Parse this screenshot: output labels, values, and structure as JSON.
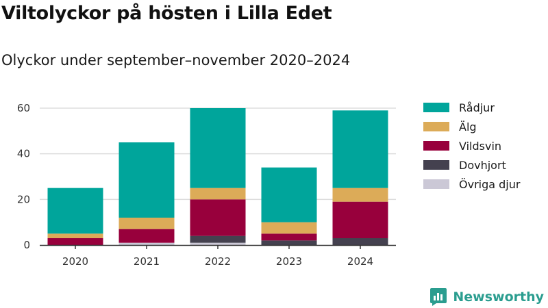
{
  "title": "Viltolyckor på hösten i Lilla Edet",
  "subtitle": "Olyckor under september–november 2020–2024",
  "brand": {
    "name": "Newsworthy",
    "logo_icon": "newsworthy-logo-icon"
  },
  "chart_data": {
    "type": "bar",
    "stacked": true,
    "title": "Viltolyckor på hösten i Lilla Edet",
    "subtitle": "Olyckor under september–november 2020–2024",
    "xlabel": "",
    "ylabel": "",
    "categories": [
      "2020",
      "2021",
      "2022",
      "2023",
      "2024"
    ],
    "ylim": [
      0,
      60
    ],
    "yticks": [
      0,
      20,
      40,
      60
    ],
    "grid": true,
    "legend_position": "right",
    "series": [
      {
        "name": "Övriga djur",
        "color": "#cbc8d6",
        "values": [
          0,
          1,
          1,
          0,
          0
        ]
      },
      {
        "name": "Dovhjort",
        "color": "#44414f",
        "values": [
          0,
          0,
          3,
          2,
          3
        ]
      },
      {
        "name": "Vildsvin",
        "color": "#98003c",
        "values": [
          3,
          6,
          16,
          3,
          16
        ]
      },
      {
        "name": "Älg",
        "color": "#dcab58",
        "values": [
          2,
          5,
          5,
          5,
          6
        ]
      },
      {
        "name": "Rådjur",
        "color": "#00a59b",
        "values": [
          20,
          33,
          35,
          24,
          34
        ]
      }
    ],
    "legend_order": [
      "Rådjur",
      "Älg",
      "Vildsvin",
      "Dovhjort",
      "Övriga djur"
    ]
  }
}
